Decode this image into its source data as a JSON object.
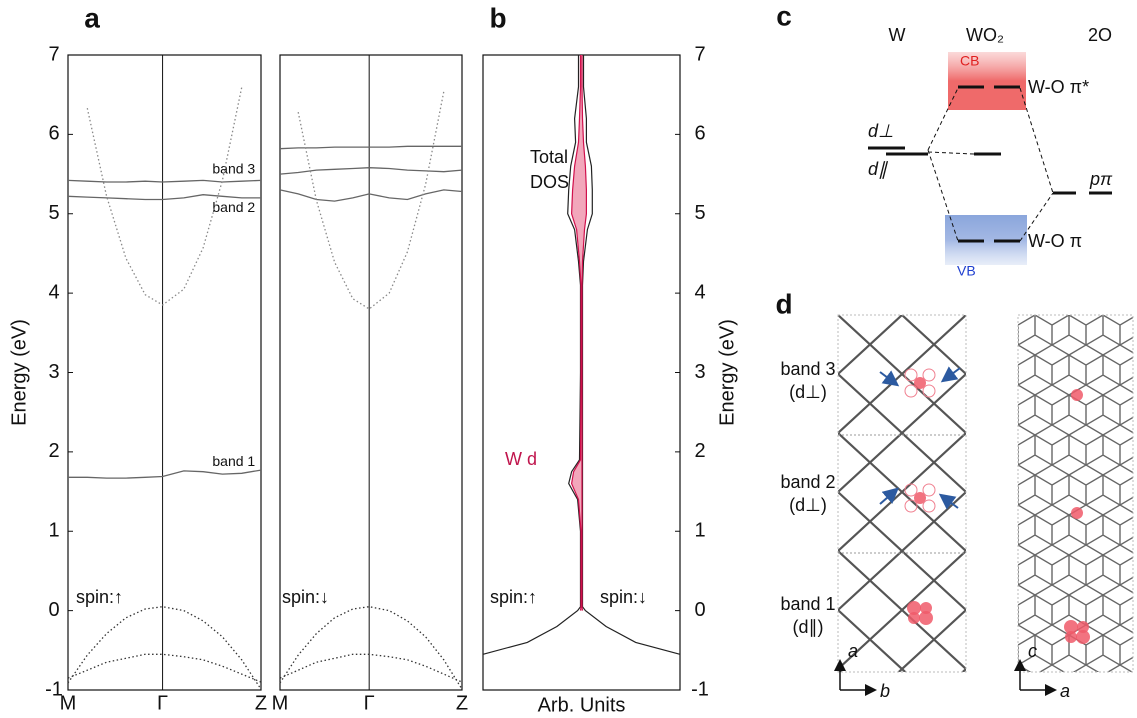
{
  "chart_data": [
    {
      "type": "line",
      "ylabel": "Energy (eV)",
      "annotation": "spin:↑",
      "x": [
        0,
        0.1,
        0.2,
        0.3,
        0.4,
        0.49,
        0.6,
        0.7,
        0.8,
        0.9,
        1
      ],
      "xlim": [
        0,
        1
      ],
      "xticks": [
        {
          "value": 0,
          "label": "M"
        },
        {
          "value": 0.49,
          "label": "Γ"
        },
        {
          "value": 1,
          "label": "Z"
        }
      ],
      "ylim": [
        -1,
        7
      ],
      "yticks": [
        -1,
        0,
        1,
        2,
        3,
        4,
        5,
        6,
        7
      ],
      "series": [
        {
          "name": "band 1",
          "color": "#666666",
          "values": [
            1.68,
            1.68,
            1.67,
            1.67,
            1.68,
            1.69,
            1.76,
            1.75,
            1.72,
            1.73,
            1.77
          ]
        },
        {
          "name": "band 2",
          "color": "#666666",
          "values": [
            5.22,
            5.21,
            5.2,
            5.19,
            5.18,
            5.18,
            5.2,
            5.24,
            5.22,
            5.2,
            5.2
          ]
        },
        {
          "name": "band 3",
          "color": "#666666",
          "values": [
            5.42,
            5.41,
            5.4,
            5.4,
            5.41,
            5.4,
            5.41,
            5.42,
            5.4,
            5.41,
            5.42
          ]
        },
        {
          "color": "#888888",
          "values": [
            null,
            6.33,
            5.22,
            4.44,
            3.98,
            3.85,
            4.05,
            4.57,
            5.42,
            6.59,
            null
          ]
        },
        {
          "color": "#333333",
          "values": [
            -0.91,
            -0.56,
            -0.29,
            -0.09,
            0.02,
            0.05,
            0.0,
            -0.13,
            -0.33,
            -0.62,
            -0.99
          ]
        },
        {
          "color": "#333333",
          "values": [
            -0.85,
            -0.75,
            -0.65,
            -0.6,
            -0.55,
            -0.55,
            -0.58,
            -0.62,
            -0.7,
            -0.8,
            -0.9
          ]
        }
      ]
    },
    {
      "type": "line",
      "annotation": "spin:↓",
      "x": [
        0,
        0.1,
        0.2,
        0.3,
        0.4,
        0.49,
        0.6,
        0.7,
        0.8,
        0.9,
        1
      ],
      "xlim": [
        0,
        1
      ],
      "xticks": [
        {
          "value": 0,
          "label": "M"
        },
        {
          "value": 0.49,
          "label": "Γ"
        },
        {
          "value": 1,
          "label": "Z"
        }
      ],
      "ylim": [
        -1,
        7
      ],
      "series": [
        {
          "color": "#666666",
          "values": [
            5.82,
            5.83,
            5.83,
            5.84,
            5.84,
            5.84,
            5.84,
            5.85,
            5.85,
            5.85,
            5.85
          ]
        },
        {
          "color": "#666666",
          "values": [
            5.5,
            5.52,
            5.55,
            5.56,
            5.57,
            5.58,
            5.57,
            5.55,
            5.54,
            5.53,
            5.55
          ]
        },
        {
          "color": "#666666",
          "values": [
            5.3,
            5.25,
            5.18,
            5.16,
            5.2,
            5.25,
            5.2,
            5.18,
            5.25,
            5.3,
            5.28
          ]
        },
        {
          "color": "#888888",
          "values": [
            null,
            6.28,
            5.17,
            4.39,
            3.93,
            3.8,
            4.0,
            4.52,
            5.37,
            6.54,
            null
          ]
        },
        {
          "color": "#333333",
          "values": [
            -0.91,
            -0.56,
            -0.29,
            -0.09,
            0.02,
            0.05,
            0.0,
            -0.13,
            -0.33,
            -0.62,
            -0.99
          ]
        },
        {
          "color": "#333333",
          "values": [
            -0.85,
            -0.75,
            -0.65,
            -0.6,
            -0.55,
            -0.55,
            -0.58,
            -0.62,
            -0.7,
            -0.8,
            -0.9
          ]
        }
      ]
    },
    {
      "type": "dos",
      "xlabel": "Arb. Units",
      "ylabel": "Energy (eV)",
      "annotations": [
        "Total",
        "DOS",
        "W d",
        "spin:↑",
        "spin:↓"
      ],
      "y": [
        -0.55,
        -0.4,
        -0.2,
        0,
        0.05,
        1,
        1.4,
        1.6,
        1.75,
        1.9,
        3,
        4.1,
        4.4,
        4.8,
        5.0,
        5.3,
        5.6,
        5.9,
        6.2,
        6.6,
        7
      ],
      "xlim": [
        -1,
        1
      ],
      "ylim": [
        -1,
        7
      ],
      "yticks": [
        -1,
        0,
        1,
        2,
        3,
        4,
        5,
        6,
        7
      ],
      "series": [
        {
          "color": "#222222",
          "values": [
            -1.0,
            -0.55,
            -0.25,
            -0.04,
            -0.01,
            -0.01,
            -0.04,
            -0.13,
            -0.1,
            -0.02,
            -0.01,
            -0.01,
            -0.03,
            -0.07,
            -0.14,
            -0.13,
            -0.11,
            -0.06,
            -0.07,
            -0.03,
            -0.03
          ]
        },
        {
          "color": "#222222",
          "values": [
            1.0,
            0.55,
            0.25,
            0.04,
            0.01,
            0.01,
            0.01,
            0.01,
            0.01,
            0.01,
            0.01,
            0.01,
            0.02,
            0.06,
            0.11,
            0.11,
            0.1,
            0.05,
            0.05,
            0.02,
            0.02
          ]
        },
        {
          "color": "#d0104c",
          "fill": "#f2a7bb",
          "values": [
            null,
            null,
            null,
            -0.01,
            -0.005,
            -0.005,
            -0.03,
            -0.1,
            -0.08,
            -0.01,
            -0.005,
            -0.005,
            -0.02,
            -0.05,
            -0.1,
            -0.09,
            -0.07,
            -0.03,
            -0.02,
            -0.01,
            -0.01
          ]
        },
        {
          "color": "#d0104c",
          "fill": "#f2a7bb",
          "values": [
            null,
            null,
            null,
            0.01,
            0.005,
            0.005,
            0.005,
            0.005,
            0.005,
            0.005,
            0.005,
            0.005,
            0.01,
            0.03,
            0.05,
            0.05,
            0.04,
            0.02,
            0.01,
            0.005,
            0.005
          ]
        }
      ]
    }
  ],
  "panel_labels": [
    "a",
    "b",
    "c",
    "d"
  ],
  "diagram_c": {
    "columns": [
      "W",
      "WO₂",
      "2O"
    ],
    "cb": "CB",
    "vb": "VB",
    "levels": {
      "antibonding": "W-O π*",
      "bonding": "W-O π",
      "d_perp": "d⊥",
      "d_par": "d∥",
      "p_pi": "pπ"
    }
  },
  "diagram_d": {
    "bands": [
      {
        "label": "band 3",
        "orbital": "(d⊥)"
      },
      {
        "label": "band 2",
        "orbital": "(d⊥)"
      },
      {
        "label": "band 1",
        "orbital": "(d∥)"
      }
    ],
    "axes_left": [
      "a",
      "b"
    ],
    "axes_right": [
      "c",
      "a"
    ]
  }
}
